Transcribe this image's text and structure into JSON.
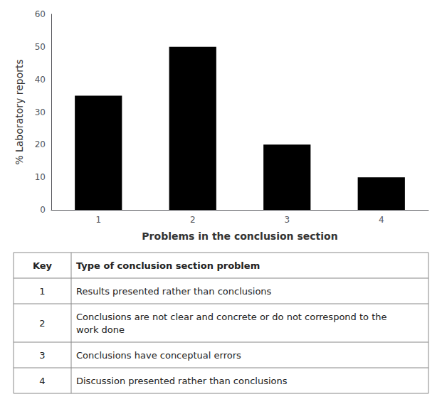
{
  "chart_data": {
    "type": "bar",
    "xlabel": "Problems in the conclusion section",
    "ylabel": "% Laboratory reports",
    "categories": [
      "1",
      "2",
      "3",
      "4"
    ],
    "values": [
      35,
      50,
      20,
      10
    ],
    "color": "#000000",
    "ylim": [
      0,
      60
    ],
    "yticks": [
      0,
      10,
      20,
      30,
      40,
      50,
      60
    ],
    "grid": false,
    "table": {
      "headers": [
        "Key",
        "Type of conclusion section problem"
      ],
      "rows": [
        [
          "1",
          "Results presented rather than conclusions"
        ],
        [
          "2",
          "Conclusions are not clear and concrete or do not correspond to the\nwork done"
        ],
        [
          "3",
          "Conclusions have conceptual errors"
        ],
        [
          "4",
          "Discussion presented rather than conclusions"
        ]
      ]
    }
  }
}
